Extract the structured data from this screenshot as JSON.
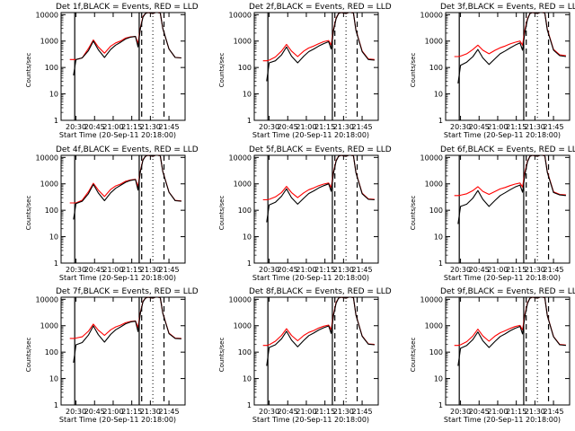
{
  "chart_data": {
    "type": "line",
    "title_template": "Det {n}f,BLACK = Events, RED = LLD",
    "xlabel": "Start Time (20-Sep-11 20:18:00)",
    "ylabel": "Counts/sec",
    "y_scale": "log",
    "ylim": [
      1,
      12000
    ],
    "xlim": [
      "20:18",
      "21:58"
    ],
    "x_tick_labels": [
      "20:30",
      "20:45",
      "21:00",
      "21:15",
      "21:30",
      "21:45"
    ],
    "y_tick_labels": [
      "1",
      "10",
      "100",
      "1000",
      "10000"
    ],
    "vertical_markers": {
      "solid": [
        "20:29",
        "21:21"
      ],
      "dashed": [
        "21:23",
        "21:41"
      ],
      "dotted": [
        "21:32"
      ]
    },
    "colors": {
      "events": "#000000",
      "lld": "#ff0000"
    },
    "times": [
      "20:25",
      "20:28",
      "20:30",
      "20:35",
      "20:40",
      "20:44",
      "20:48",
      "20:53",
      "20:58",
      "21:02",
      "21:06",
      "21:10",
      "21:14",
      "21:18",
      "21:20",
      "21:22",
      "21:24",
      "21:26",
      "21:28",
      "21:30",
      "21:32",
      "21:34",
      "21:36",
      "21:38",
      "21:40",
      "21:45",
      "21:50",
      "21:55"
    ],
    "panels": [
      {
        "det": "1",
        "events": [
          null,
          50,
          200,
          230,
          430,
          1000,
          470,
          240,
          480,
          700,
          900,
          1200,
          1400,
          1500,
          600,
          3000,
          8000,
          11000,
          12000,
          11500,
          11000,
          12000,
          12000,
          11500,
          3000,
          500,
          240,
          230
        ],
        "lld": [
          200,
          200,
          200,
          230,
          520,
          1100,
          600,
          350,
          640,
          850,
          1000,
          1300,
          1450,
          1500,
          800,
          3200,
          8500,
          11000,
          12000,
          11500,
          11000,
          12000,
          12000,
          11500,
          3000,
          500,
          240,
          230
        ]
      },
      {
        "det": "2",
        "events": [
          null,
          30,
          150,
          180,
          300,
          600,
          270,
          150,
          270,
          400,
          500,
          650,
          800,
          950,
          500,
          2500,
          7000,
          11000,
          12000,
          11500,
          11000,
          12000,
          12000,
          11500,
          2500,
          400,
          200,
          190
        ],
        "lld": [
          180,
          180,
          190,
          250,
          420,
          750,
          420,
          260,
          420,
          550,
          650,
          800,
          950,
          1050,
          700,
          2800,
          7500,
          11000,
          12000,
          11500,
          11000,
          12000,
          12000,
          11500,
          2600,
          420,
          210,
          200
        ]
      },
      {
        "det": "3",
        "events": [
          null,
          25,
          120,
          160,
          260,
          480,
          230,
          130,
          220,
          330,
          420,
          550,
          700,
          850,
          450,
          2200,
          6500,
          11000,
          12000,
          11500,
          11000,
          12000,
          12000,
          11500,
          2600,
          450,
          280,
          260
        ],
        "lld": [
          260,
          260,
          270,
          330,
          480,
          700,
          450,
          330,
          450,
          560,
          650,
          780,
          900,
          1000,
          700,
          2700,
          7000,
          11000,
          12000,
          11500,
          11000,
          12000,
          12000,
          11500,
          2800,
          480,
          300,
          280
        ]
      },
      {
        "det": "4",
        "events": [
          null,
          45,
          180,
          220,
          420,
          950,
          450,
          230,
          460,
          680,
          880,
          1150,
          1350,
          1450,
          580,
          2900,
          7800,
          11000,
          12000,
          11500,
          11000,
          12000,
          12000,
          11500,
          2900,
          480,
          230,
          220
        ],
        "lld": [
          190,
          190,
          190,
          240,
          500,
          1050,
          580,
          330,
          620,
          830,
          980,
          1250,
          1400,
          1480,
          780,
          3100,
          8200,
          11000,
          12000,
          11500,
          11000,
          12000,
          12000,
          11500,
          2950,
          490,
          235,
          225
        ]
      },
      {
        "det": "5",
        "events": [
          null,
          35,
          160,
          200,
          340,
          650,
          300,
          170,
          290,
          430,
          540,
          700,
          850,
          1000,
          520,
          2600,
          7200,
          11000,
          12000,
          11500,
          11000,
          12000,
          12000,
          11500,
          2600,
          420,
          260,
          250
        ],
        "lld": [
          250,
          250,
          260,
          320,
          470,
          800,
          470,
          300,
          460,
          600,
          700,
          850,
          980,
          1080,
          720,
          2900,
          7700,
          11000,
          12000,
          11500,
          11000,
          12000,
          12000,
          11500,
          2700,
          440,
          270,
          260
        ]
      },
      {
        "det": "6",
        "events": [
          null,
          30,
          140,
          170,
          290,
          560,
          260,
          140,
          240,
          360,
          460,
          600,
          760,
          900,
          480,
          2300,
          6800,
          11000,
          12000,
          11500,
          11000,
          12000,
          12000,
          11500,
          2700,
          470,
          380,
          360
        ],
        "lld": [
          360,
          360,
          370,
          420,
          560,
          780,
          520,
          400,
          520,
          640,
          730,
          860,
          980,
          1080,
          760,
          2800,
          7200,
          11000,
          12000,
          11500,
          11000,
          12000,
          12000,
          11500,
          2900,
          500,
          400,
          380
        ]
      },
      {
        "det": "7",
        "events": [
          null,
          40,
          190,
          230,
          440,
          980,
          460,
          240,
          470,
          700,
          900,
          1180,
          1380,
          1480,
          600,
          3000,
          7900,
          11000,
          12000,
          11500,
          11000,
          12000,
          12000,
          11500,
          2950,
          500,
          330,
          320
        ],
        "lld": [
          330,
          330,
          340,
          380,
          620,
          1150,
          680,
          430,
          700,
          900,
          1050,
          1300,
          1450,
          1520,
          850,
          3200,
          8300,
          11000,
          12000,
          11500,
          11000,
          12000,
          12000,
          11500,
          3000,
          520,
          340,
          330
        ]
      },
      {
        "det": "8",
        "events": [
          null,
          30,
          150,
          190,
          320,
          620,
          290,
          160,
          280,
          420,
          530,
          690,
          840,
          980,
          510,
          2500,
          7100,
          11000,
          12000,
          11500,
          11000,
          12000,
          12000,
          11500,
          2500,
          400,
          200,
          190
        ],
        "lld": [
          180,
          180,
          190,
          260,
          430,
          770,
          430,
          270,
          430,
          560,
          660,
          820,
          960,
          1060,
          710,
          2800,
          7600,
          11000,
          12000,
          11500,
          11000,
          12000,
          12000,
          11500,
          2550,
          410,
          205,
          195
        ]
      },
      {
        "det": "9",
        "events": [
          null,
          30,
          140,
          180,
          300,
          580,
          270,
          150,
          260,
          390,
          490,
          640,
          800,
          940,
          490,
          2400,
          6900,
          11000,
          12000,
          11500,
          11000,
          12000,
          12000,
          11500,
          2400,
          380,
          190,
          180
        ],
        "lld": [
          180,
          180,
          190,
          250,
          410,
          740,
          410,
          260,
          410,
          540,
          640,
          790,
          930,
          1030,
          690,
          2700,
          7400,
          11000,
          12000,
          11500,
          11000,
          12000,
          12000,
          11500,
          2450,
          390,
          195,
          185
        ]
      }
    ]
  }
}
